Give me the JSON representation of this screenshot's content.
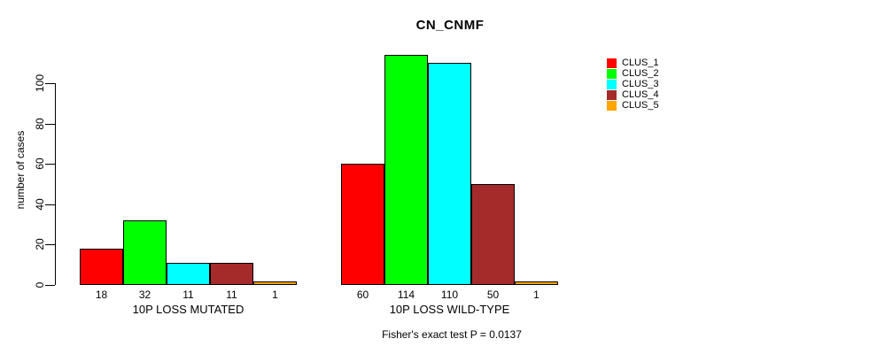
{
  "chart_data": {
    "type": "bar",
    "title": "CN_CNMF",
    "xlabel": "",
    "ylabel": "number of cases",
    "categories": [
      "10P LOSS MUTATED",
      "10P LOSS WILD-TYPE"
    ],
    "series": [
      {
        "name": "CLUS_1",
        "color": "#FF0000",
        "values": [
          18,
          60
        ]
      },
      {
        "name": "CLUS_2",
        "color": "#00FF00",
        "values": [
          32,
          114
        ]
      },
      {
        "name": "CLUS_3",
        "color": "#00FFFF",
        "values": [
          11,
          110
        ]
      },
      {
        "name": "CLUS_4",
        "color": "#A52A2A",
        "values": [
          11,
          50
        ]
      },
      {
        "name": "CLUS_5",
        "color": "#FFA500",
        "values": [
          1,
          1
        ]
      }
    ],
    "bar_value_labels": [
      [
        "18",
        "32",
        "11",
        "11",
        "1"
      ],
      [
        "60",
        "114",
        "110",
        "50",
        "1"
      ]
    ],
    "yticks": [
      0,
      20,
      40,
      60,
      80,
      100
    ],
    "ylim": [
      0,
      114
    ],
    "grid": false,
    "legend_position": "top-right",
    "caption": "Fisher's exact test P = 0.0137"
  },
  "colors": {
    "background": "#FFFFFF",
    "axis": "#000000",
    "bar_border": "#000000",
    "text": "#000000"
  }
}
